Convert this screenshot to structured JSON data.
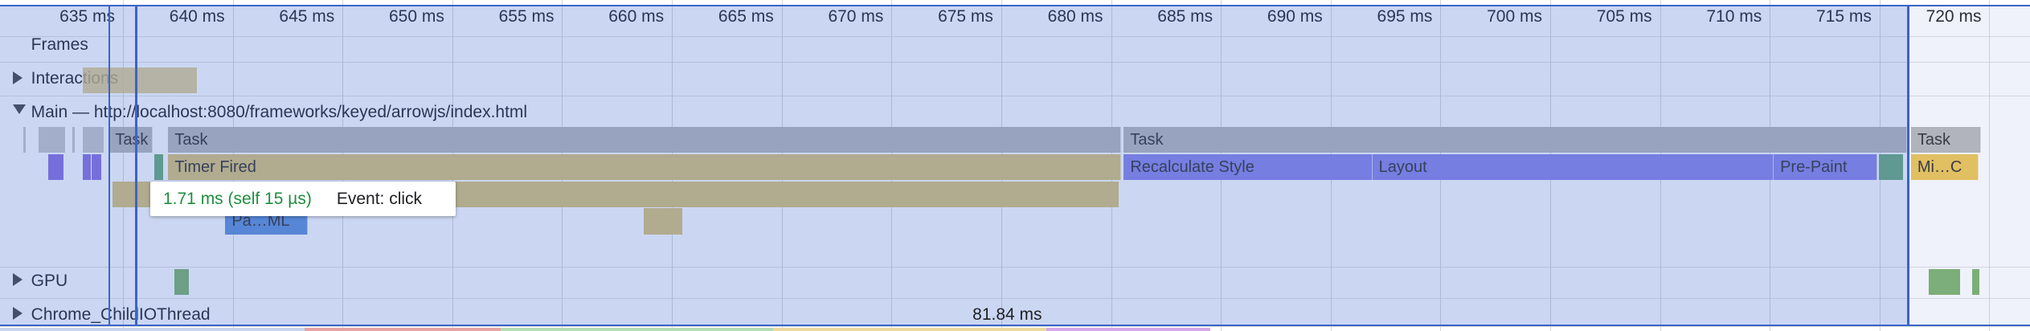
{
  "ruler": {
    "ticks": [
      "635 ms",
      "640 ms",
      "645 ms",
      "650 ms",
      "655 ms",
      "660 ms",
      "665 ms",
      "670 ms",
      "675 ms",
      "680 ms",
      "685 ms",
      "690 ms",
      "695 ms",
      "700 ms",
      "705 ms",
      "710 ms",
      "715 ms",
      "720 ms"
    ]
  },
  "tracks": {
    "frames": "Frames",
    "interactions": "Interactions",
    "main": "Main — http://localhost:8080/frameworks/keyed/arrowjs/index.html",
    "gpu": "GPU",
    "io": "Chrome_ChildIOThread"
  },
  "main_events": {
    "row1": [
      "Task",
      "Task",
      "Task",
      "Task"
    ],
    "row2": [
      "Timer Fired",
      "Recalculate Style",
      "Layout",
      "Pre-Paint",
      "Mi…C"
    ],
    "row4": [
      "Pa…ML"
    ]
  },
  "tooltip": {
    "duration": "1.71 ms (self 15 µs)",
    "event": "Event: click"
  },
  "selection_duration": "81.84 ms"
}
